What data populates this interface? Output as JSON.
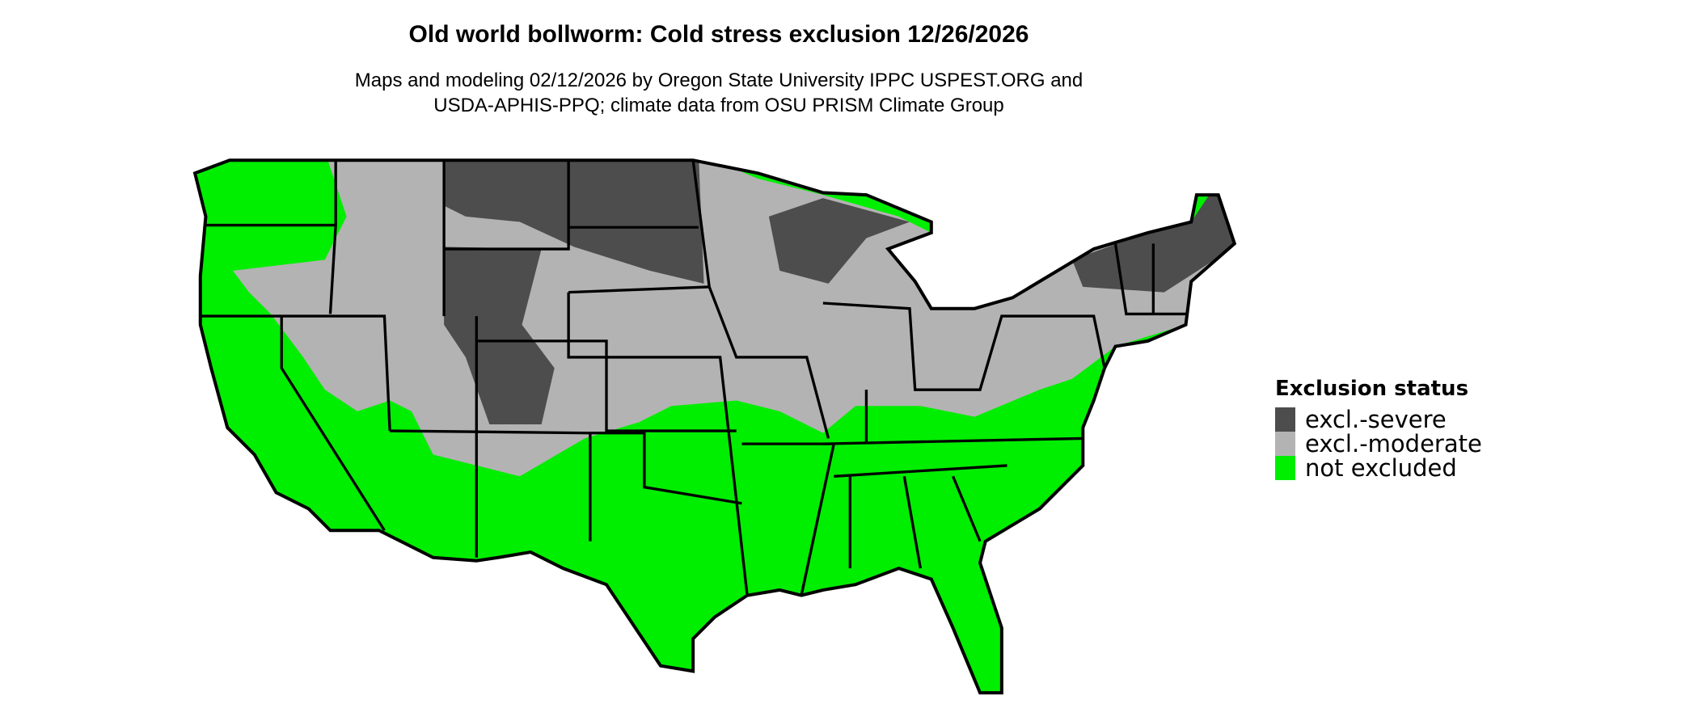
{
  "title": "Old world bollworm: Cold stress exclusion 12/26/2026",
  "subtitle_line1": "Maps and modeling 02/12/2026 by Oregon State University IPPC USPEST.ORG and",
  "subtitle_line2": "USDA-APHIS-PPQ; climate data from OSU PRISM Climate Group",
  "legend": {
    "title": "Exclusion status",
    "items": [
      {
        "label": "excl.-severe",
        "color": "#4d4d4d"
      },
      {
        "label": "excl.-moderate",
        "color": "#b3b3b3"
      },
      {
        "label": "not excluded",
        "color": "#00ee00"
      }
    ]
  },
  "map": {
    "region": "Contiguous United States",
    "border_color": "#000000"
  }
}
